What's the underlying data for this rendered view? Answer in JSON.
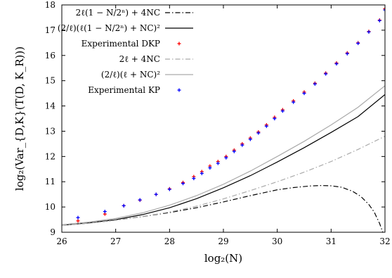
{
  "chart_data": {
    "type": "line",
    "xlabel": "log₂(N)",
    "ylabel": "log₂(Var_{D,K}(T(D, K_R)))",
    "xlim": [
      26,
      32
    ],
    "ylim": [
      9,
      18
    ],
    "x_ticks": [
      "26",
      "27",
      "28",
      "29",
      "30",
      "31",
      "32"
    ],
    "y_ticks": [
      "9",
      "10",
      "11",
      "12",
      "13",
      "14",
      "15",
      "16",
      "17",
      "18"
    ],
    "legend_position": "top-left",
    "series": [
      {
        "name": "2ℓ(1 − N/2ⁿ) + 4NC",
        "style": "dash-dot",
        "color": "#000000",
        "x": [
          26,
          26.5,
          27,
          27.5,
          28,
          28.5,
          29,
          29.5,
          30,
          30.3,
          30.6,
          30.8,
          31.0,
          31.2,
          31.4,
          31.55,
          31.7,
          31.8,
          31.9,
          31.96
        ],
        "y": [
          9.28,
          9.36,
          9.48,
          9.62,
          9.78,
          9.97,
          10.2,
          10.45,
          10.68,
          10.77,
          10.83,
          10.85,
          10.84,
          10.78,
          10.62,
          10.42,
          10.1,
          9.8,
          9.35,
          9.0
        ]
      },
      {
        "name": "(2/ℓ)(ℓ(1 − N/2ⁿ) + NC)²",
        "style": "solid",
        "color": "#000000",
        "x": [
          26,
          26.5,
          27,
          27.5,
          28,
          28.5,
          29,
          29.5,
          30,
          30.5,
          31,
          31.5,
          32
        ],
        "y": [
          9.28,
          9.37,
          9.5,
          9.7,
          9.97,
          10.33,
          10.76,
          11.24,
          11.78,
          12.35,
          12.95,
          13.58,
          14.45
        ]
      },
      {
        "name": "Experimental DKP",
        "style": "markers",
        "color": "#ff0000",
        "x": [
          26.3,
          26.8,
          27.15,
          27.45,
          27.75,
          28.0,
          28.25,
          28.45,
          28.6,
          28.75,
          28.9,
          29.05,
          29.2,
          29.35,
          29.5,
          29.65,
          29.8,
          29.95,
          30.1,
          30.3,
          30.5,
          30.7,
          30.9,
          31.1,
          31.3,
          31.5,
          31.7,
          31.9,
          32.0
        ],
        "y": [
          9.45,
          9.72,
          10.05,
          10.27,
          10.5,
          10.72,
          10.97,
          11.2,
          11.4,
          11.62,
          11.8,
          12.0,
          12.25,
          12.5,
          12.73,
          12.97,
          13.25,
          13.55,
          13.85,
          14.2,
          14.55,
          14.9,
          15.3,
          15.7,
          16.1,
          16.5,
          16.95,
          17.4,
          17.85
        ]
      },
      {
        "name": "2ℓ + 4NC",
        "style": "dash-dot",
        "color": "#aaaaaa",
        "x": [
          26,
          26.5,
          27,
          27.5,
          28,
          28.5,
          29,
          29.5,
          30,
          30.5,
          31,
          31.5,
          32
        ],
        "y": [
          9.28,
          9.36,
          9.48,
          9.62,
          9.8,
          10.03,
          10.32,
          10.65,
          11.0,
          11.38,
          11.8,
          12.28,
          12.8
        ]
      },
      {
        "name": "(2/ℓ)(ℓ + NC)²",
        "style": "solid",
        "color": "#aaaaaa",
        "x": [
          26,
          26.5,
          27,
          27.5,
          28,
          28.5,
          29,
          29.5,
          30,
          30.5,
          31,
          31.5,
          32
        ],
        "y": [
          9.3,
          9.4,
          9.55,
          9.77,
          10.07,
          10.45,
          10.9,
          11.42,
          12.0,
          12.6,
          13.25,
          13.95,
          14.8
        ]
      },
      {
        "name": "Experimental KP",
        "style": "markers",
        "color": "#0000ff",
        "x": [
          26.3,
          26.8,
          27.15,
          27.45,
          27.75,
          28.0,
          28.25,
          28.45,
          28.6,
          28.75,
          28.9,
          29.05,
          29.2,
          29.35,
          29.5,
          29.65,
          29.8,
          29.95,
          30.1,
          30.3,
          30.5,
          30.7,
          30.9,
          31.1,
          31.3,
          31.5,
          31.7,
          31.9,
          32.0
        ],
        "y": [
          9.58,
          9.82,
          10.05,
          10.28,
          10.5,
          10.7,
          10.93,
          11.13,
          11.33,
          11.55,
          11.73,
          11.95,
          12.2,
          12.45,
          12.68,
          12.93,
          13.2,
          13.5,
          13.8,
          14.15,
          14.5,
          14.87,
          15.27,
          15.67,
          16.07,
          16.48,
          16.93,
          17.38,
          17.8
        ]
      }
    ]
  }
}
